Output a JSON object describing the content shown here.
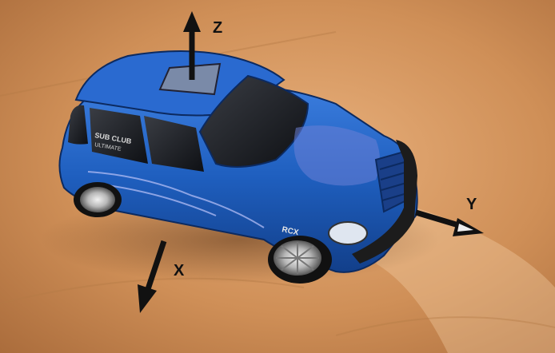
{
  "axes": {
    "z": "Z",
    "y": "Y",
    "x": "X"
  },
  "car": {
    "window_decal_line1": "SUB CLUB",
    "window_decal_line2": "ULTIMATE",
    "badge": "RCX"
  },
  "colors": {
    "car_body": "#1f5fbf",
    "table": "#c98a55",
    "arrow": "#111111"
  }
}
